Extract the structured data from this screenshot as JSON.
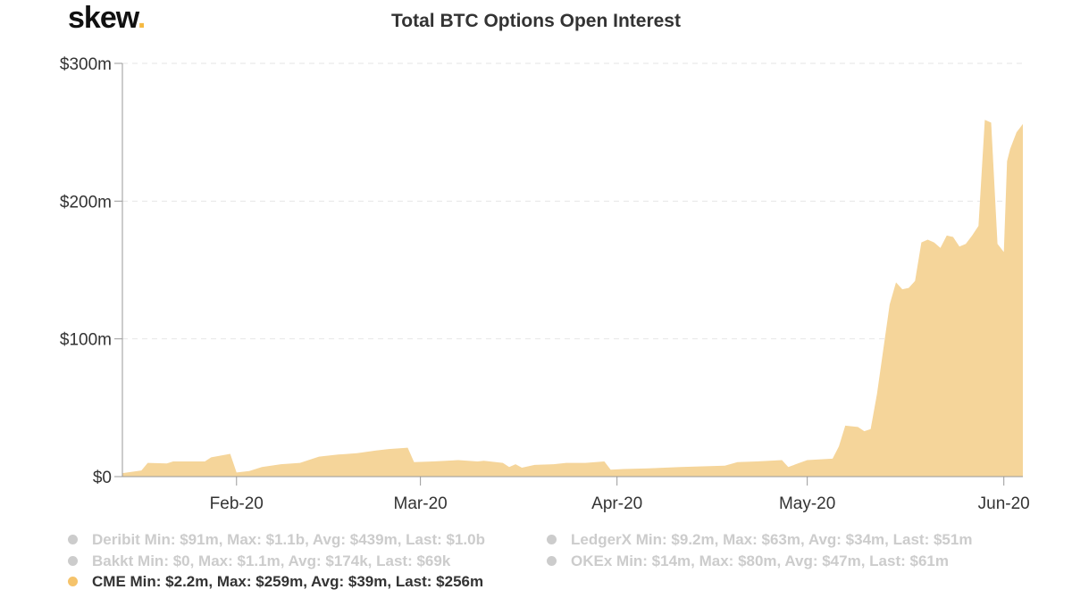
{
  "brand": {
    "logo_text": "skew",
    "logo_dot": ".",
    "dot_color": "#f5b942"
  },
  "chart_data": {
    "type": "area",
    "title": "Total BTC Options Open Interest",
    "y_ticks": [
      {
        "value": 0,
        "label": "$0"
      },
      {
        "value": 100,
        "label": "$100m"
      },
      {
        "value": 200,
        "label": "$200m"
      },
      {
        "value": 300,
        "label": "$300m"
      }
    ],
    "ylim": [
      0,
      300
    ],
    "y_unit": "$m",
    "x_start": "2020-01-14",
    "x_end": "2020-06-04",
    "x_ticks": [
      {
        "date": "2020-02-01",
        "label": "Feb-20"
      },
      {
        "date": "2020-03-01",
        "label": "Mar-20"
      },
      {
        "date": "2020-04-01",
        "label": "Apr-20"
      },
      {
        "date": "2020-05-01",
        "label": "May-20"
      },
      {
        "date": "2020-06-01",
        "label": "Jun-20"
      }
    ],
    "grid": true,
    "legend_position": "bottom",
    "series": [
      {
        "name": "CME",
        "color": "#f5d59a",
        "visible": true,
        "points": [
          [
            "2020-01-14",
            2.5
          ],
          [
            "2020-01-17",
            4.5
          ],
          [
            "2020-01-18",
            10
          ],
          [
            "2020-01-21",
            9.5
          ],
          [
            "2020-01-22",
            11
          ],
          [
            "2020-01-27",
            11
          ],
          [
            "2020-01-28",
            14
          ],
          [
            "2020-01-31",
            16.5
          ],
          [
            "2020-02-01",
            3
          ],
          [
            "2020-02-03",
            4
          ],
          [
            "2020-02-05",
            7
          ],
          [
            "2020-02-08",
            9
          ],
          [
            "2020-02-11",
            10
          ],
          [
            "2020-02-14",
            14.5
          ],
          [
            "2020-02-17",
            16
          ],
          [
            "2020-02-20",
            17
          ],
          [
            "2020-02-23",
            19
          ],
          [
            "2020-02-25",
            20
          ],
          [
            "2020-02-28",
            21
          ],
          [
            "2020-02-29",
            10.5
          ],
          [
            "2020-03-03",
            11
          ],
          [
            "2020-03-07",
            12
          ],
          [
            "2020-03-10",
            11
          ],
          [
            "2020-03-11",
            11.5
          ],
          [
            "2020-03-14",
            10
          ],
          [
            "2020-03-15",
            7
          ],
          [
            "2020-03-16",
            9
          ],
          [
            "2020-03-17",
            6.5
          ],
          [
            "2020-03-19",
            8.5
          ],
          [
            "2020-03-22",
            9
          ],
          [
            "2020-03-24",
            10
          ],
          [
            "2020-03-27",
            10
          ],
          [
            "2020-03-30",
            11
          ],
          [
            "2020-03-31",
            5
          ],
          [
            "2020-04-02",
            5.5
          ],
          [
            "2020-04-06",
            6
          ],
          [
            "2020-04-11",
            7
          ],
          [
            "2020-04-15",
            7.5
          ],
          [
            "2020-04-18",
            8
          ],
          [
            "2020-04-20",
            10.5
          ],
          [
            "2020-04-23",
            11
          ],
          [
            "2020-04-27",
            12
          ],
          [
            "2020-04-28",
            7
          ],
          [
            "2020-05-01",
            12
          ],
          [
            "2020-05-05",
            13
          ],
          [
            "2020-05-06",
            22
          ],
          [
            "2020-05-07",
            37
          ],
          [
            "2020-05-09",
            36
          ],
          [
            "2020-05-10",
            33
          ],
          [
            "2020-05-11",
            34.5
          ],
          [
            "2020-05-12",
            60
          ],
          [
            "2020-05-14",
            125
          ],
          [
            "2020-05-15",
            141
          ],
          [
            "2020-05-16",
            136
          ],
          [
            "2020-05-17",
            137
          ],
          [
            "2020-05-18",
            142
          ],
          [
            "2020-05-19",
            170
          ],
          [
            "2020-05-20",
            172
          ],
          [
            "2020-05-21",
            170
          ],
          [
            "2020-05-22",
            166
          ],
          [
            "2020-05-23",
            175
          ],
          [
            "2020-05-24",
            174
          ],
          [
            "2020-05-25",
            167
          ],
          [
            "2020-05-26",
            169
          ],
          [
            "2020-05-27",
            175
          ],
          [
            "2020-05-28",
            182
          ],
          [
            "2020-05-29",
            259
          ],
          [
            "2020-05-30",
            257
          ],
          [
            "2020-05-31",
            169
          ],
          [
            "2020-06-01",
            163
          ],
          [
            "2020-06-01T12",
            229
          ],
          [
            "2020-06-02",
            238
          ],
          [
            "2020-06-03",
            250
          ],
          [
            "2020-06-04",
            256
          ]
        ]
      }
    ]
  },
  "legend": [
    {
      "name": "Deribit",
      "stats": "Min: $91m, Max: $1.1b, Avg: $439m, Last: $1.0b",
      "color": "#cccccc",
      "active": false
    },
    {
      "name": "LedgerX",
      "stats": "Min: $9.2m, Max: $63m, Avg: $34m, Last: $51m",
      "color": "#cccccc",
      "active": false
    },
    {
      "name": "Bakkt",
      "stats": "Min: $0, Max: $1.1m, Avg: $174k, Last: $69k",
      "color": "#cccccc",
      "active": false
    },
    {
      "name": "OKEx",
      "stats": "Min: $14m, Max: $80m, Avg: $47m, Last: $61m",
      "color": "#cccccc",
      "active": false
    },
    {
      "name": "CME",
      "stats": "Min: $2.2m, Max: $259m, Avg: $39m, Last: $256m",
      "color": "#f5c36b",
      "active": true
    }
  ]
}
